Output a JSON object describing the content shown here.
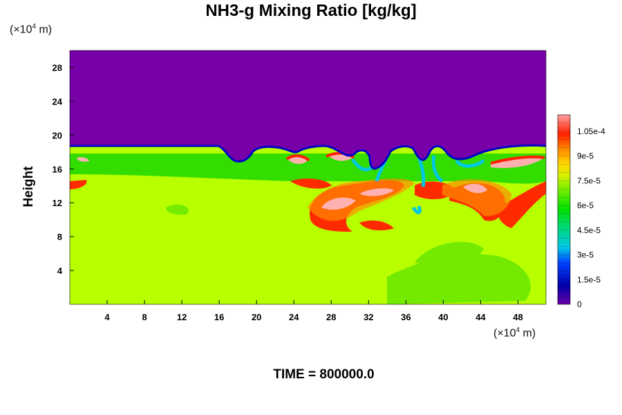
{
  "chart_data": {
    "type": "heatmap",
    "title": "NH3-g Mixing Ratio [kg/kg]",
    "ylabel": "Height",
    "x_unit": {
      "prefix": "(×10",
      "exponent": "4",
      "suffix": " m)"
    },
    "y_unit": {
      "prefix": "(×10",
      "exponent": "4",
      "suffix": " m)"
    },
    "xlim": [
      0,
      51
    ],
    "ylim": [
      0,
      30
    ],
    "x_ticks": [
      4,
      8,
      12,
      16,
      20,
      24,
      28,
      32,
      36,
      40,
      44,
      48
    ],
    "y_ticks": [
      4,
      8,
      12,
      16,
      20,
      24,
      28
    ],
    "colorbar": {
      "min": 0,
      "max": 0.000115,
      "tick_values": [
        0,
        1.5e-05,
        3e-05,
        4.5e-05,
        6e-05,
        7.5e-05,
        9e-05,
        0.000105
      ],
      "tick_labels": [
        "0",
        "1.5e-5",
        "3e-5",
        "4.5e-5",
        "6e-5",
        "7.5e-5",
        "9e-5",
        "1.05e-4"
      ],
      "levels": 23
    },
    "field_summary": {
      "upper_value": 0,
      "lower_value": 7.7e-05,
      "interface_height": 18.3
    },
    "footer": "TIME = 800000.0"
  },
  "colors": {
    "purple": "#7800a8",
    "blue": "#0000c8",
    "cyan": "#00c8c8",
    "green": "#00d800",
    "yellowgreen": "#b8ff00",
    "orange": "#ff8c00",
    "red": "#e81010",
    "pink": "#ffa0a0"
  }
}
